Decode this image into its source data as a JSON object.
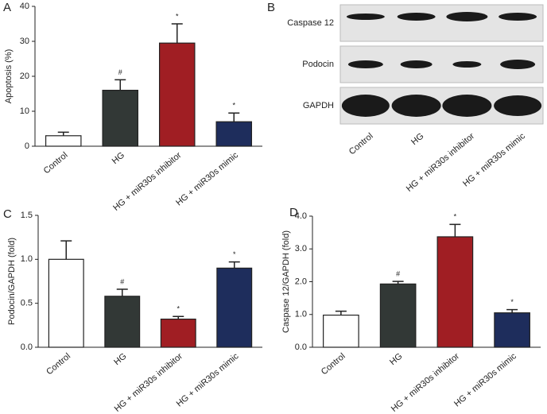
{
  "chart_data": [
    {
      "type": "bar",
      "panel": "A",
      "y_label": "Apoptosis (%)",
      "categories": [
        "Control",
        "HG",
        "HG + miR30s inhibitor",
        "HG + miR30s mimic"
      ],
      "values": [
        3,
        16,
        29.5,
        7
      ],
      "errors": [
        1,
        3,
        5.5,
        2.5
      ],
      "annotations": [
        null,
        "#",
        "*",
        "*"
      ],
      "colors": [
        "#ffffff",
        "#323836",
        "#a01e23",
        "#1e2d5c"
      ],
      "ylim": [
        0,
        40
      ],
      "yticks": [
        0,
        10,
        20,
        30,
        40
      ]
    },
    {
      "type": "blot",
      "panel": "B",
      "rows": [
        "Caspase 12",
        "Podocin",
        "GAPDH"
      ],
      "categories": [
        "Control",
        "HG",
        "HG + miR30s inhibitor",
        "HG + miR30s mimic"
      ]
    },
    {
      "type": "bar",
      "panel": "C",
      "y_label": "Podocin/GAPDH (fold)",
      "categories": [
        "Control",
        "HG",
        "HG + miR30s inhibitor",
        "HG + miR30s mimic"
      ],
      "values": [
        1.0,
        0.58,
        0.32,
        0.9
      ],
      "errors": [
        0.21,
        0.08,
        0.03,
        0.07
      ],
      "annotations": [
        null,
        "#",
        "*",
        "*"
      ],
      "colors": [
        "#ffffff",
        "#323836",
        "#a01e23",
        "#1e2d5c"
      ],
      "ylim": [
        0,
        1.5
      ],
      "yticks": [
        {
          "value": 0,
          "label": "0.0"
        },
        0.5,
        {
          "value": 1,
          "label": "1.0"
        },
        1.5
      ]
    },
    {
      "type": "bar",
      "panel": "D",
      "y_label": "Caspase 12/GAPDH (fold)",
      "categories": [
        "Control",
        "HG",
        "HG + miR30s inhibitor",
        "HG + miR30s mimic"
      ],
      "values": [
        0.98,
        1.93,
        3.37,
        1.05
      ],
      "errors": [
        0.12,
        0.08,
        0.38,
        0.1
      ],
      "annotations": [
        null,
        "#",
        "*",
        "*"
      ],
      "colors": [
        "#ffffff",
        "#323836",
        "#a01e23",
        "#1e2d5c"
      ],
      "ylim": [
        0,
        4
      ],
      "yticks": [
        {
          "value": 0,
          "label": "0.0"
        },
        {
          "value": 1,
          "label": "1.0"
        },
        {
          "value": 2,
          "label": "2.0"
        },
        {
          "value": 3,
          "label": "3.0"
        },
        {
          "value": 4,
          "label": "4.0"
        }
      ]
    }
  ]
}
